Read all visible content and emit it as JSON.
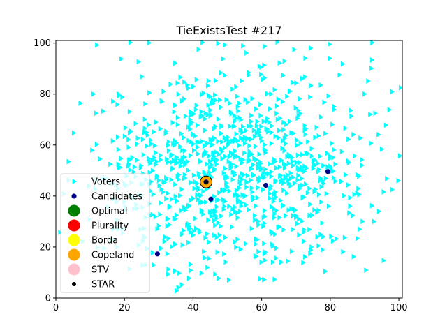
{
  "chart_data": {
    "type": "scatter",
    "title": "TieExistsTest #217",
    "xlabel": "",
    "ylabel": "",
    "xlim": [
      0,
      101
    ],
    "ylim": [
      0,
      101
    ],
    "x_ticks": [
      0,
      20,
      40,
      60,
      80,
      100
    ],
    "y_ticks": [
      0,
      20,
      40,
      60,
      80,
      100
    ],
    "grid": false,
    "legend_position": "lower left",
    "series": [
      {
        "name": "Voters",
        "marker": "triangle-right",
        "color": "#00ffff",
        "approx_count": 1000,
        "distribution": "roughly normal, centered near (52, 50)",
        "x_range": [
          0,
          101
        ],
        "y_range": [
          0,
          101
        ]
      },
      {
        "name": "Candidates",
        "marker": "circle",
        "color": "#00008b",
        "points": [
          {
            "x": 29.6,
            "y": 17.3
          },
          {
            "x": 45.2,
            "y": 38.8
          },
          {
            "x": 43.8,
            "y": 45.5
          },
          {
            "x": 61.2,
            "y": 44.2
          },
          {
            "x": 79.3,
            "y": 49.6
          }
        ]
      },
      {
        "name": "Optimal",
        "marker": "circle",
        "color": "#008000",
        "points": []
      },
      {
        "name": "Plurality",
        "marker": "circle",
        "color": "#ff0000",
        "points": []
      },
      {
        "name": "Borda",
        "marker": "circle",
        "color": "#ffff00",
        "points": []
      },
      {
        "name": "Copeland",
        "marker": "circle",
        "color": "#ffa500",
        "points": [
          {
            "x": 43.8,
            "y": 45.5
          }
        ]
      },
      {
        "name": "STV",
        "marker": "circle",
        "color": "#ffc0cb",
        "points": []
      },
      {
        "name": "STAR",
        "marker": "circle",
        "color": "#000000",
        "points": [
          {
            "x": 43.8,
            "y": 45.5
          }
        ]
      }
    ]
  }
}
